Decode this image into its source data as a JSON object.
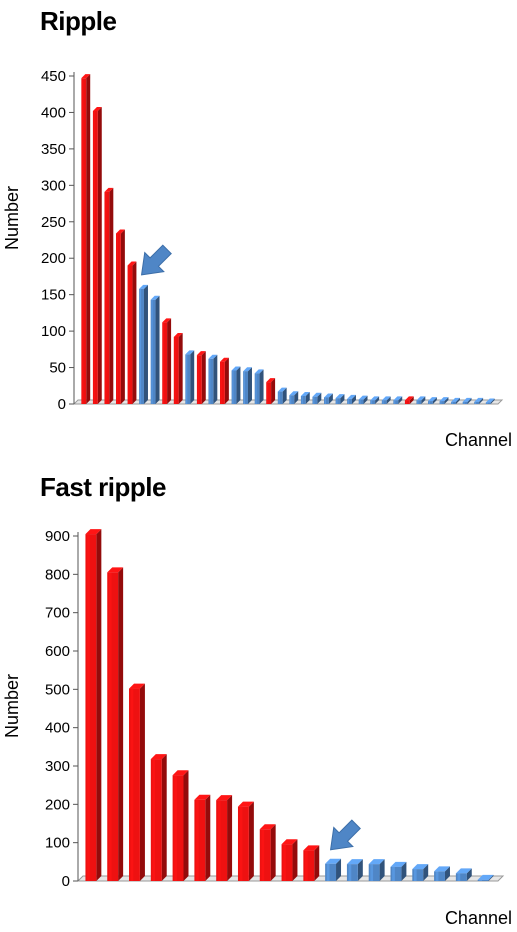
{
  "chart_data": [
    {
      "type": "bar",
      "title": "Ripple",
      "xlabel": "Channel",
      "ylabel": "Number",
      "ylim": [
        0,
        450
      ],
      "yticks": [
        0,
        50,
        100,
        150,
        200,
        250,
        300,
        350,
        400,
        450
      ],
      "values": [
        447,
        402,
        291,
        234,
        190,
        158,
        143,
        112,
        92,
        68,
        67,
        62,
        58,
        46,
        45,
        42,
        30,
        17,
        12,
        11,
        10,
        9,
        8,
        7,
        6,
        5,
        5,
        5,
        5,
        5,
        4,
        4,
        3,
        3,
        3,
        2
      ],
      "colors": [
        "red",
        "red",
        "red",
        "red",
        "red",
        "blue",
        "blue",
        "red",
        "red",
        "blue",
        "red",
        "blue",
        "red",
        "blue",
        "blue",
        "blue",
        "red",
        "blue",
        "blue",
        "blue",
        "blue",
        "blue",
        "blue",
        "blue",
        "blue",
        "blue",
        "blue",
        "blue",
        "red",
        "blue",
        "blue",
        "blue",
        "blue",
        "blue",
        "blue",
        "blue"
      ],
      "arrow_target_index": 5,
      "grid": false,
      "palette": {
        "red": "#ee1111",
        "blue": "#4f86c6"
      }
    },
    {
      "type": "bar",
      "title": "Fast ripple",
      "xlabel": "Channel",
      "ylabel": "Number",
      "ylim": [
        0,
        900
      ],
      "yticks": [
        0,
        100,
        200,
        300,
        400,
        500,
        600,
        700,
        800,
        900
      ],
      "values": [
        905,
        805,
        502,
        318,
        276,
        212,
        211,
        194,
        135,
        96,
        80,
        45,
        44,
        44,
        37,
        31,
        25,
        20,
        3
      ],
      "colors": [
        "red",
        "red",
        "red",
        "red",
        "red",
        "red",
        "red",
        "red",
        "red",
        "red",
        "red",
        "blue",
        "blue",
        "blue",
        "blue",
        "blue",
        "blue",
        "blue",
        "blue"
      ],
      "arrow_target_index": 11,
      "grid": false,
      "palette": {
        "red": "#ee1111",
        "blue": "#4f86c6"
      }
    }
  ]
}
